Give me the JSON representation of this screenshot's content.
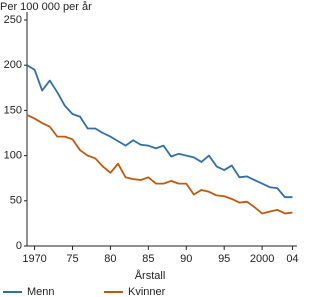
{
  "chart_data": {
    "type": "line",
    "y_label": "Per 100 000 per år",
    "x_label": "Årstall",
    "x": [
      1969,
      1970,
      1971,
      1972,
      1973,
      1974,
      1975,
      1976,
      1977,
      1978,
      1979,
      1980,
      1981,
      1982,
      1983,
      1984,
      1985,
      1986,
      1987,
      1988,
      1989,
      1990,
      1991,
      1992,
      1993,
      1994,
      1995,
      1996,
      1997,
      1998,
      1999,
      2000,
      2001,
      2002,
      2003,
      2004
    ],
    "series": [
      {
        "name": "Menn",
        "color": "#2f6fa8",
        "values": [
          200,
          195,
          172,
          183,
          170,
          155,
          146,
          143,
          130,
          130,
          125,
          121,
          116,
          111,
          117,
          112,
          111,
          108,
          111,
          99,
          102,
          100,
          98,
          93,
          100,
          88,
          84,
          89,
          76,
          77,
          73,
          69,
          65,
          64,
          54,
          54
        ]
      },
      {
        "name": "Kvinner",
        "color": "#c0580f",
        "values": [
          145,
          141,
          136,
          132,
          121,
          121,
          118,
          106,
          100,
          97,
          88,
          81,
          91,
          76,
          74,
          73,
          76,
          69,
          69,
          72,
          69,
          69,
          57,
          62,
          60,
          56,
          55,
          52,
          48,
          49,
          43,
          36,
          38,
          40,
          36,
          37
        ]
      }
    ],
    "xlim": [
      1969,
      2004.6
    ],
    "xticks": [
      1970,
      {
        "value": 1975,
        "label": "75"
      },
      {
        "value": 1980,
        "label": "80"
      },
      {
        "value": 1985,
        "label": "85"
      },
      {
        "value": 1990,
        "label": "90"
      },
      {
        "value": 1995,
        "label": "95"
      },
      2000,
      {
        "value": 2004,
        "label": "04"
      }
    ],
    "ylim": [
      0,
      250
    ],
    "yticks": [
      0,
      50,
      100,
      150,
      200,
      250
    ],
    "grid": false,
    "legend": "bottom"
  }
}
